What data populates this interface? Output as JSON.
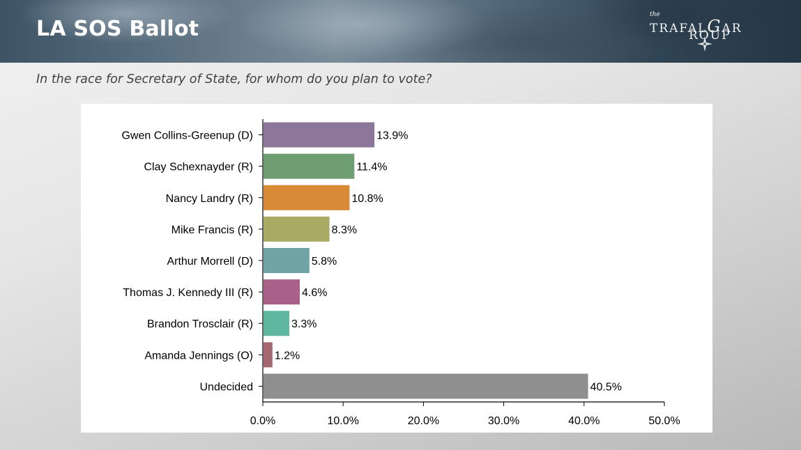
{
  "header": {
    "title": "LA SOS Ballot",
    "logo_the": "the",
    "logo_line1": "TRAFAL",
    "logo_g": "G",
    "logo_line1_end": "AR",
    "logo_line2": "ROUP"
  },
  "question": "In the race for Secretary of State, for whom do you plan to vote?",
  "chart_data": {
    "type": "bar",
    "orientation": "horizontal",
    "title": "",
    "xlabel": "",
    "ylabel": "",
    "categories": [
      "Gwen Collins-Greenup (D)",
      "Clay Schexnayder (R)",
      "Nancy Landry (R)",
      "Mike Francis (R)",
      "Arthur Morrell (D)",
      "Thomas J. Kennedy III (R)",
      "Brandon Trosclair (R)",
      "Amanda Jennings (O)",
      "Undecided"
    ],
    "values": [
      13.9,
      11.4,
      10.8,
      8.3,
      5.8,
      4.6,
      3.3,
      1.2,
      40.5
    ],
    "value_labels": [
      "13.9%",
      "11.4%",
      "10.8%",
      "8.3%",
      "5.8%",
      "4.6%",
      "3.3%",
      "1.2%",
      "40.5%"
    ],
    "colors": [
      "#8c7699",
      "#6f9e73",
      "#d98a36",
      "#a9aa64",
      "#6fa3a4",
      "#a96089",
      "#5eb79e",
      "#a5686e",
      "#8f8f8f"
    ],
    "xlim": [
      0,
      50
    ],
    "xticks": [
      0,
      10,
      20,
      30,
      40,
      50
    ],
    "xtick_labels": [
      "0.0%",
      "10.0%",
      "20.0%",
      "30.0%",
      "40.0%",
      "50.0%"
    ],
    "grid": false,
    "legend": "none"
  }
}
